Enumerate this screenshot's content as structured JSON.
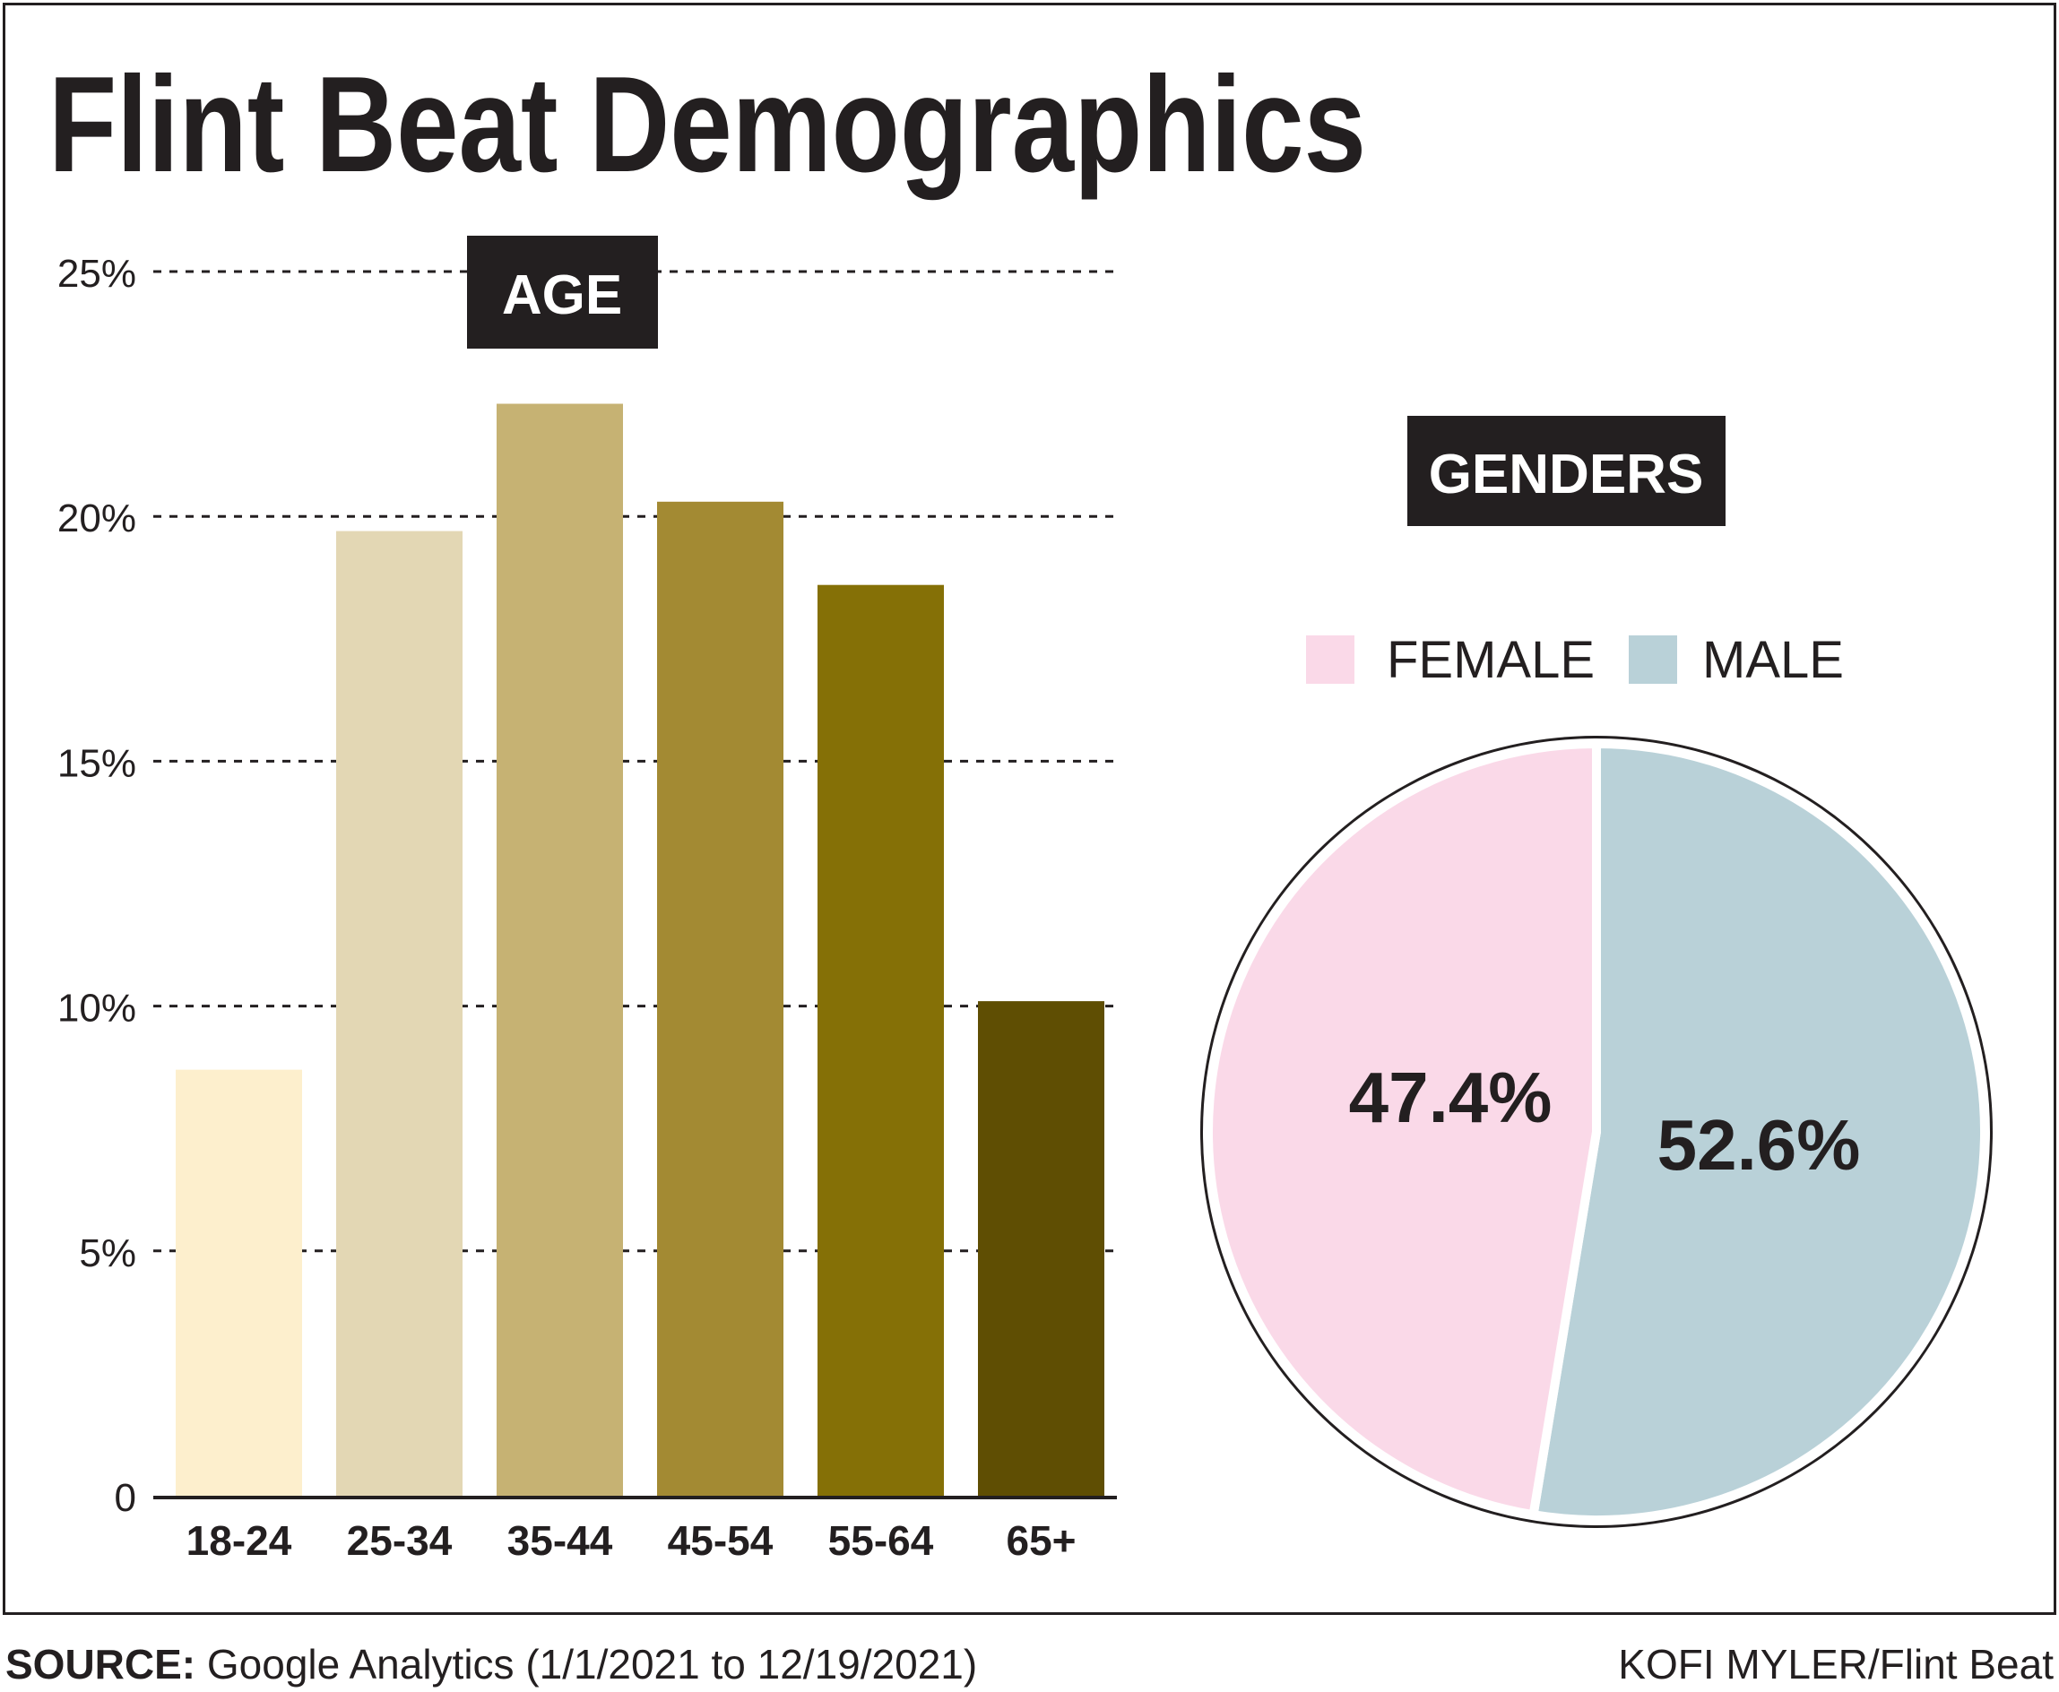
{
  "title": "Flint Beat Demographics",
  "footer": {
    "source_label": "SOURCE:",
    "source_text": "Google Analytics (1/1/2021 to 12/19/2021)",
    "credit": "KOFI MYLER/Flint Beat"
  },
  "colors": {
    "ink": "#231f20",
    "female": "#fad9e8",
    "male": "#b9d1d8",
    "bars": [
      "#fdefcd",
      "#e3d7b4",
      "#c6b273",
      "#a38a33",
      "#857006",
      "#5f4e03"
    ]
  },
  "chart_data": [
    {
      "type": "bar",
      "title": "AGE",
      "categories": [
        "18-24",
        "25-34",
        "35-44",
        "45-54",
        "55-64",
        "65+"
      ],
      "values": [
        8.7,
        19.7,
        22.3,
        20.3,
        18.6,
        10.1
      ],
      "ylim": [
        0,
        25
      ],
      "yticks": [
        0,
        5,
        10,
        15,
        20,
        25
      ],
      "ytick_labels": [
        "0",
        "5%",
        "10%",
        "15%",
        "20%",
        "25%"
      ],
      "xlabel": "",
      "ylabel": "",
      "grid": true
    },
    {
      "type": "pie",
      "title": "GENDERS",
      "labels": [
        "FEMALE",
        "MALE"
      ],
      "values": [
        47.4,
        52.6
      ],
      "value_labels": [
        "47.4%",
        "52.6%"
      ],
      "legend": "top"
    }
  ]
}
